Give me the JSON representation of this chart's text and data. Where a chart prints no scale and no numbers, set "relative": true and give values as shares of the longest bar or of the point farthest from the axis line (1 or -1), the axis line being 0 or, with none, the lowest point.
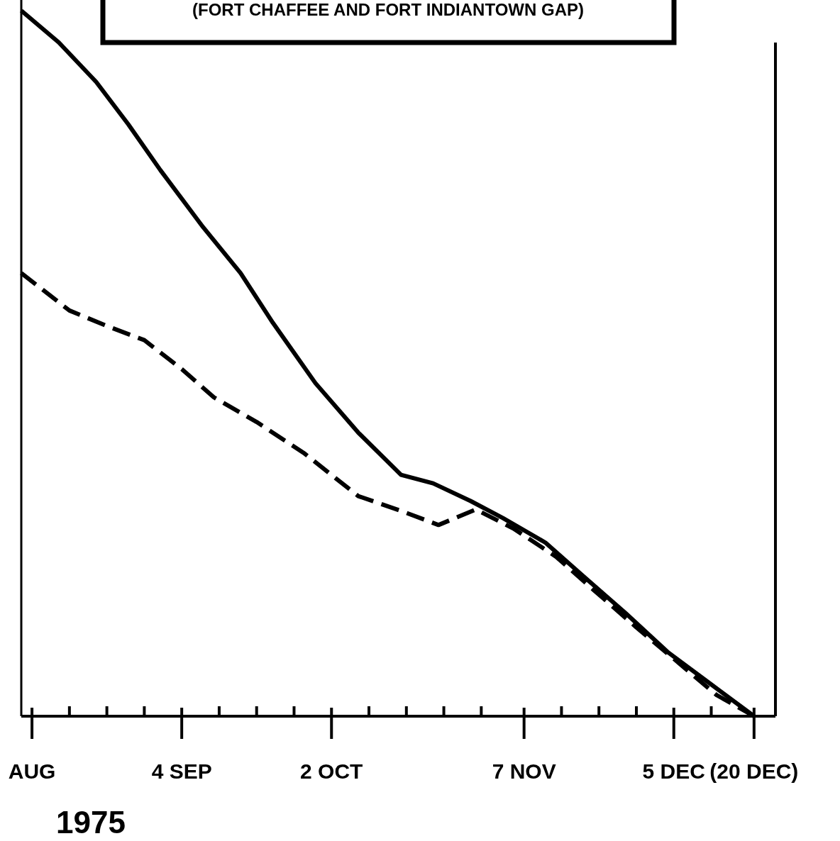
{
  "chart_data": {
    "type": "line",
    "title": "(FORT CHAFFEE AND FORT INDIANTOWN GAP)",
    "relative": true,
    "grid": false,
    "xlim": [
      "1975-08-05",
      "1975-12-24"
    ],
    "xticks": [
      {
        "value": "1975-08-07",
        "label": "AUG"
      },
      {
        "value": "1975-08-14",
        "label": null
      },
      {
        "value": "1975-08-21",
        "label": null
      },
      {
        "value": "1975-08-28",
        "label": null
      },
      {
        "value": "1975-09-04",
        "label": "4 SEP"
      },
      {
        "value": "1975-09-11",
        "label": null
      },
      {
        "value": "1975-09-18",
        "label": null
      },
      {
        "value": "1975-09-25",
        "label": null
      },
      {
        "value": "1975-10-02",
        "label": "2 OCT"
      },
      {
        "value": "1975-10-09",
        "label": null
      },
      {
        "value": "1975-10-16",
        "label": null
      },
      {
        "value": "1975-10-23",
        "label": null
      },
      {
        "value": "1975-10-30",
        "label": null
      },
      {
        "value": "1975-11-07",
        "label": "7 NOV"
      },
      {
        "value": "1975-11-14",
        "label": null
      },
      {
        "value": "1975-11-21",
        "label": null
      },
      {
        "value": "1975-11-28",
        "label": null
      },
      {
        "value": "1975-12-05",
        "label": "5 DEC"
      },
      {
        "value": "1975-12-12",
        "label": null
      },
      {
        "value": "1975-12-20",
        "label": "(20 DEC)"
      }
    ],
    "annotations": [
      "1975"
    ],
    "series": [
      {
        "color": "#000000",
        "line_style": "solid",
        "x": [
          "1975-08-05",
          "1975-08-12",
          "1975-08-19",
          "1975-08-25",
          "1975-08-31",
          "1975-09-08",
          "1975-09-15",
          "1975-09-21",
          "1975-09-29",
          "1975-10-07",
          "1975-10-15",
          "1975-10-21",
          "1975-10-28",
          "1975-11-03",
          "1975-11-11",
          "1975-11-18",
          "1975-11-26",
          "1975-12-04",
          "1975-12-12",
          "1975-12-20"
        ],
        "values": [
          1.0,
          0.955,
          0.899,
          0.839,
          0.774,
          0.693,
          0.628,
          0.558,
          0.472,
          0.402,
          0.342,
          0.33,
          0.305,
          0.281,
          0.246,
          0.199,
          0.146,
          0.09,
          0.045,
          0
        ]
      },
      {
        "color": "#000000",
        "line_style": "dashed",
        "x": [
          "1975-08-05",
          "1975-08-14",
          "1975-08-21",
          "1975-08-28",
          "1975-09-04",
          "1975-09-10",
          "1975-09-18",
          "1975-09-27",
          "1975-10-07",
          "1975-10-15",
          "1975-10-22",
          "1975-10-29",
          "1975-11-05",
          "1975-11-13",
          "1975-11-20",
          "1975-11-28",
          "1975-12-06",
          "1975-12-13",
          "1975-12-20"
        ],
        "values": [
          0.628,
          0.575,
          0.553,
          0.533,
          0.492,
          0.452,
          0.417,
          0.372,
          0.312,
          0.291,
          0.271,
          0.293,
          0.266,
          0.226,
          0.179,
          0.126,
          0.075,
          0.03,
          0
        ]
      }
    ]
  }
}
